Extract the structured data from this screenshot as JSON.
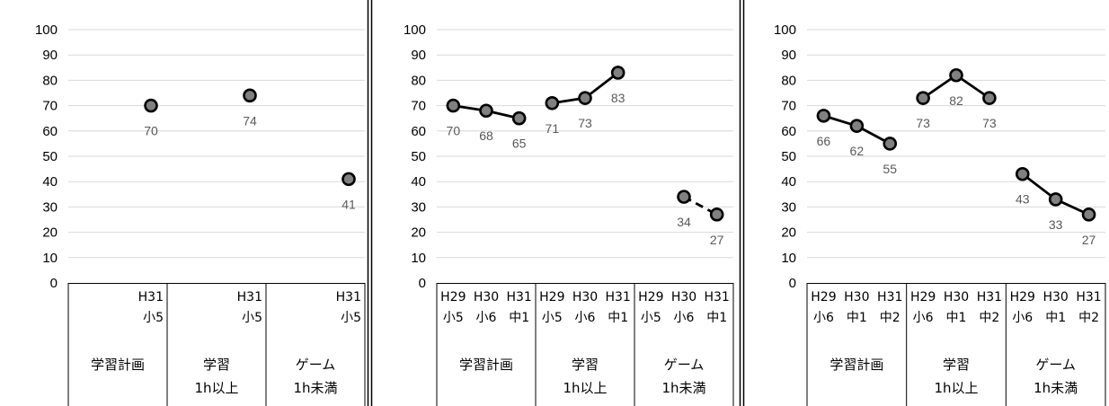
{
  "chart_data": [
    {
      "type": "line",
      "ylim": [
        0,
        100
      ],
      "yticks": [
        0,
        10,
        20,
        30,
        40,
        50,
        60,
        70,
        80,
        90,
        100
      ],
      "grid": true,
      "groups": [
        {
          "label": "学習計画",
          "categories": [
            {
              "year": "H31",
              "grade": "小5"
            }
          ],
          "values": [
            70
          ]
        },
        {
          "label": "学習|1h以上",
          "categories": [
            {
              "year": "H31",
              "grade": "小5"
            }
          ],
          "values": [
            74
          ]
        },
        {
          "label": "ゲーム|1h未満",
          "categories": [
            {
              "year": "H31",
              "grade": "小5"
            }
          ],
          "values": [
            41
          ]
        }
      ]
    },
    {
      "type": "line",
      "ylim": [
        0,
        100
      ],
      "yticks": [
        0,
        10,
        20,
        30,
        40,
        50,
        60,
        70,
        80,
        90,
        100
      ],
      "grid": true,
      "groups": [
        {
          "label": "学習計画",
          "line_style": "solid",
          "categories": [
            {
              "year": "H29",
              "grade": "小5"
            },
            {
              "year": "H30",
              "grade": "小6"
            },
            {
              "year": "H31",
              "grade": "中1"
            }
          ],
          "values": [
            70,
            68,
            65
          ]
        },
        {
          "label": "学習|1h以上",
          "line_style": "solid",
          "categories": [
            {
              "year": "H29",
              "grade": "小5"
            },
            {
              "year": "H30",
              "grade": "小6"
            },
            {
              "year": "H31",
              "grade": "中1"
            }
          ],
          "values": [
            71,
            73,
            83
          ]
        },
        {
          "label": "ゲーム|1h未満",
          "line_style": "dashed",
          "categories": [
            {
              "year": "H29",
              "grade": "小5"
            },
            {
              "year": "H30",
              "grade": "小6"
            },
            {
              "year": "H31",
              "grade": "中1"
            }
          ],
          "values": [
            null,
            34,
            27
          ]
        }
      ]
    },
    {
      "type": "line",
      "ylim": [
        0,
        100
      ],
      "yticks": [
        0,
        10,
        20,
        30,
        40,
        50,
        60,
        70,
        80,
        90,
        100
      ],
      "grid": true,
      "groups": [
        {
          "label": "学習計画",
          "line_style": "solid",
          "categories": [
            {
              "year": "H29",
              "grade": "小6"
            },
            {
              "year": "H30",
              "grade": "中1"
            },
            {
              "year": "H31",
              "grade": "中2"
            }
          ],
          "values": [
            66,
            62,
            55
          ]
        },
        {
          "label": "学習|1h以上",
          "line_style": "solid",
          "categories": [
            {
              "year": "H29",
              "grade": "小6"
            },
            {
              "year": "H30",
              "grade": "中1"
            },
            {
              "year": "H31",
              "grade": "中2"
            }
          ],
          "values": [
            73,
            82,
            73
          ]
        },
        {
          "label": "ゲーム|1h未満",
          "line_style": "solid",
          "categories": [
            {
              "year": "H29",
              "grade": "小6"
            },
            {
              "year": "H30",
              "grade": "中1"
            },
            {
              "year": "H31",
              "grade": "中2"
            }
          ],
          "values": [
            43,
            33,
            27
          ]
        }
      ]
    }
  ],
  "colors": {
    "marker_fill": "#808080",
    "marker_stroke": "#000000",
    "line": "#000000",
    "grid": "#d9d9d9",
    "label": "#595959"
  }
}
